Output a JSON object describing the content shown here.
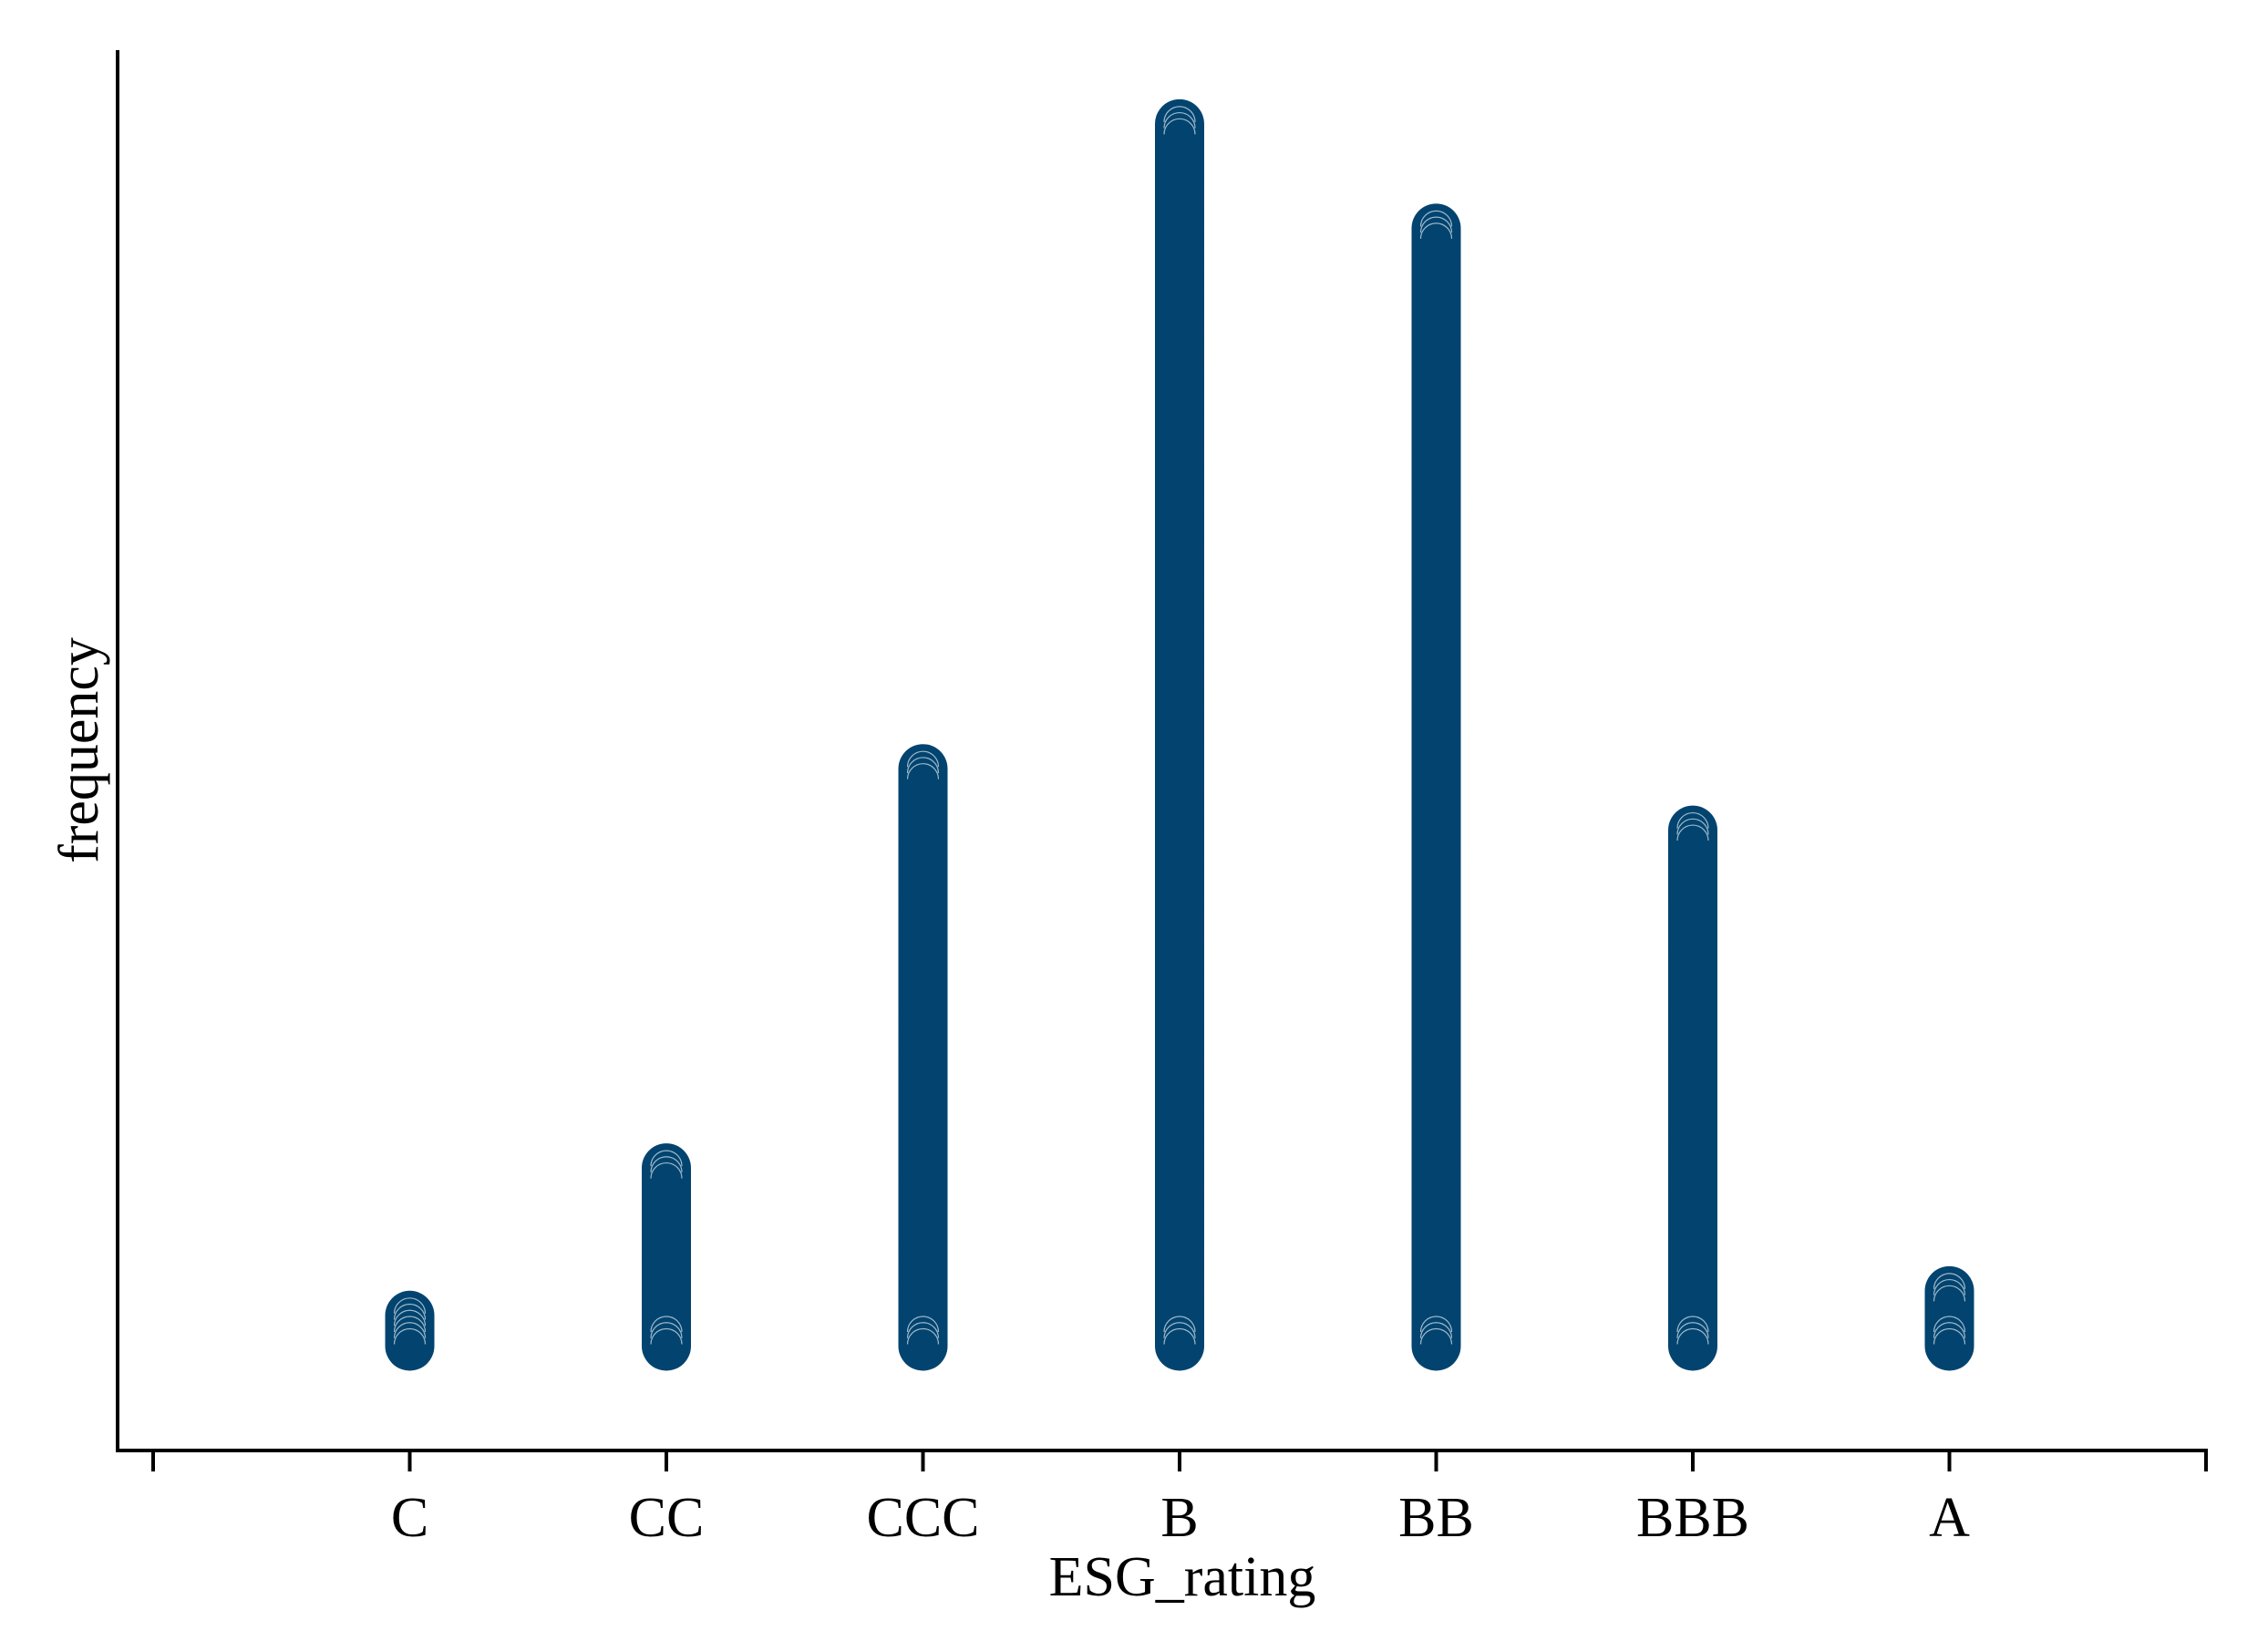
{
  "chart_data": {
    "type": "scatter",
    "title": "",
    "xlabel": "ESG_rating",
    "ylabel": "frequency",
    "categories": [
      "C",
      "CC",
      "CCC",
      "B",
      "BB",
      "BBB",
      "A"
    ],
    "values": [
      6,
      30,
      95,
      200,
      183,
      85,
      10
    ],
    "ylim": [
      -16,
      212
    ],
    "grid": false,
    "legend": "none",
    "colors": {
      "marker": "#02446F",
      "axis": "#000000",
      "background": "#FFFFFF"
    }
  }
}
